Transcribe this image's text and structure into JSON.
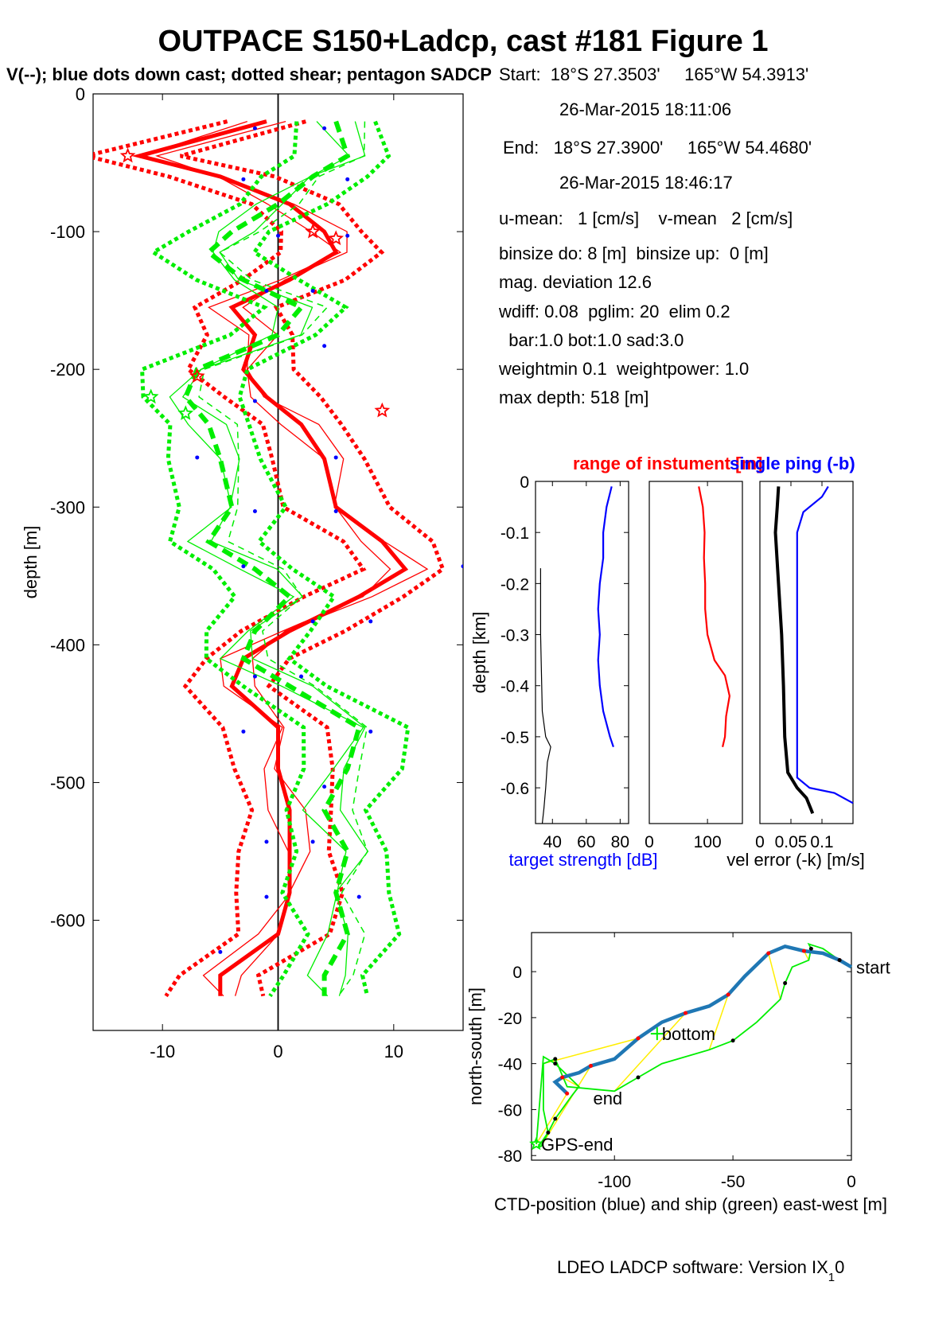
{
  "figure": {
    "title": "OUTPACE S150+Ladcp, cast #181  Figure 1",
    "subtitle": "V(--); blue dots down cast; dotted shear; pentagon SADCP",
    "footer_main": "LDEO LADCP software: Version IX",
    "footer_sub": "1",
    "footer_tail": "0"
  },
  "info": {
    "lines": [
      "Start:  18°S 27.3503'     165°W 54.3913'",
      "26-Mar-2015 18:11:06",
      "End:   18°S 27.3900'     165°W 54.4680'",
      "26-Mar-2015 18:46:17",
      "u-mean:   1 [cm/s]    v-mean   2 [cm/s]",
      "binsize do: 8 [m]  binsize up:  0 [m]",
      "mag. deviation 12.6",
      "wdiff: 0.08  pglim: 20  elim 0.2",
      "  bar:1.0 bot:1.0 sad:3.0",
      "weightmin 0.1  weightpower: 1.0",
      "max depth: 518 [m]"
    ]
  },
  "colors": {
    "u": "#ff0000",
    "v": "#00ee00",
    "blue": "#0000ff",
    "track_ctd": "#1f77b4",
    "yellow": "#ffee00",
    "black": "#000000"
  },
  "chart_data": [
    {
      "id": "velocity-profile",
      "type": "line",
      "ylabel": "depth [m]",
      "xlim": [
        -16,
        16
      ],
      "ylim": [
        -680,
        0
      ],
      "xticks": [
        -10,
        0,
        10
      ],
      "yticks": [
        0,
        -100,
        -200,
        -300,
        -400,
        -500,
        -600
      ],
      "depth": [
        -20,
        -45,
        -60,
        -80,
        -100,
        -115,
        -135,
        -155,
        -175,
        -200,
        -220,
        -240,
        -265,
        -300,
        -325,
        -345,
        -365,
        -390,
        -410,
        -430,
        -460,
        -490,
        -520,
        -550,
        -580,
        -610,
        -640,
        -655
      ],
      "series": [
        {
          "name": "u",
          "values": [
            -1,
            -12,
            -5,
            1,
            4,
            5,
            1,
            -4,
            -2,
            -3,
            -1,
            2,
            4,
            5,
            9,
            11,
            7,
            1,
            -3,
            -4,
            0,
            0,
            1,
            1,
            1,
            0,
            -5,
            -5
          ]
        },
        {
          "name": "v",
          "values": [
            5,
            6,
            3,
            0,
            -4,
            -6,
            -3,
            2,
            0,
            -7,
            -8,
            -6,
            -5,
            -4,
            -6,
            -2,
            1,
            -2,
            -3,
            1,
            7,
            6,
            4,
            6,
            5,
            6,
            4,
            4
          ]
        }
      ],
      "sadcp_markers": [
        {
          "series": "u",
          "depth": -45,
          "value": -13
        },
        {
          "series": "u",
          "depth": -100,
          "value": 3
        },
        {
          "series": "u",
          "depth": -105,
          "value": 5
        },
        {
          "series": "u",
          "depth": -205,
          "value": -7
        },
        {
          "series": "u",
          "depth": -230,
          "value": 9
        },
        {
          "series": "v",
          "depth": -220,
          "value": -11
        },
        {
          "series": "v",
          "depth": -232,
          "value": -8
        }
      ],
      "downcast_dots": [
        {
          "depth": -25,
          "value": -2
        },
        {
          "depth": -25,
          "value": 4
        },
        {
          "depth": -62,
          "value": -3
        },
        {
          "depth": -62,
          "value": 6
        },
        {
          "depth": -103,
          "value": 0
        },
        {
          "depth": -103,
          "value": 6
        },
        {
          "depth": -143,
          "value": -1
        },
        {
          "depth": -143,
          "value": 3
        },
        {
          "depth": -183,
          "value": 4
        },
        {
          "depth": -223,
          "value": -2
        },
        {
          "depth": -264,
          "value": -7
        },
        {
          "depth": -264,
          "value": 5
        },
        {
          "depth": -303,
          "value": -2
        },
        {
          "depth": -303,
          "value": 5
        },
        {
          "depth": -343,
          "value": -3
        },
        {
          "depth": -343,
          "value": 16
        },
        {
          "depth": -383,
          "value": 3
        },
        {
          "depth": -383,
          "value": 8
        },
        {
          "depth": -423,
          "value": -2
        },
        {
          "depth": -423,
          "value": 2
        },
        {
          "depth": -463,
          "value": -3
        },
        {
          "depth": -463,
          "value": 8
        },
        {
          "depth": -503,
          "value": 4
        },
        {
          "depth": -543,
          "value": -1
        },
        {
          "depth": -543,
          "value": 3
        },
        {
          "depth": -583,
          "value": -1
        },
        {
          "depth": -583,
          "value": 7
        },
        {
          "depth": -623,
          "value": -5
        }
      ]
    },
    {
      "id": "target-strength",
      "type": "line",
      "title": "range of instument [m]",
      "xlabel": "target strength [dB]",
      "ylabel": "depth [km]",
      "xlim": [
        30,
        85
      ],
      "ylim": [
        -0.67,
        0
      ],
      "xticks": [
        40,
        60,
        80
      ],
      "yticks": [
        0,
        -0.1,
        -0.2,
        -0.3,
        -0.4,
        -0.5,
        -0.6
      ],
      "series": [
        {
          "name": "target strength",
          "color": "blue",
          "depth": [
            -0.01,
            -0.05,
            -0.1,
            -0.15,
            -0.2,
            -0.25,
            -0.3,
            -0.35,
            -0.4,
            -0.45,
            -0.5,
            -0.52
          ],
          "values": [
            75,
            72,
            70,
            70,
            68,
            67,
            68,
            67,
            68,
            70,
            74,
            76
          ]
        },
        {
          "name": "range",
          "color": "black",
          "depth": [
            -0.17,
            -0.3,
            -0.45,
            -0.5,
            -0.52,
            -0.55,
            -0.6,
            -0.64,
            -0.67
          ],
          "values": [
            33,
            33,
            34,
            36,
            39,
            37,
            36,
            35,
            34
          ]
        }
      ]
    },
    {
      "id": "range-panel",
      "type": "line",
      "xlim": [
        0,
        160
      ],
      "ylim": [
        -0.67,
        0
      ],
      "xticks": [
        0,
        100
      ],
      "series": [
        {
          "name": "range",
          "color": "red",
          "depth": [
            -0.01,
            -0.05,
            -0.1,
            -0.15,
            -0.2,
            -0.25,
            -0.3,
            -0.35,
            -0.38,
            -0.42,
            -0.46,
            -0.5,
            -0.52
          ],
          "values": [
            85,
            92,
            95,
            94,
            96,
            96,
            100,
            112,
            130,
            138,
            132,
            130,
            126
          ]
        }
      ]
    },
    {
      "id": "vel-error",
      "type": "line",
      "title": "single ping (-b)",
      "xlabel": "vel error (-k) [m/s]",
      "xlim": [
        0,
        0.15
      ],
      "ylim": [
        -0.67,
        0
      ],
      "xticks": [
        0,
        0.05,
        0.1
      ],
      "xticklabels": [
        "0",
        "0.05",
        "0.1"
      ],
      "series": [
        {
          "name": "single ping",
          "color": "black",
          "depth": [
            -0.01,
            -0.05,
            -0.1,
            -0.2,
            -0.3,
            -0.4,
            -0.5,
            -0.57,
            -0.6,
            -0.62,
            -0.65
          ],
          "values": [
            0.03,
            0.028,
            0.025,
            0.03,
            0.035,
            0.038,
            0.04,
            0.045,
            0.06,
            0.075,
            0.085
          ]
        },
        {
          "name": "vel error",
          "color": "blue",
          "depth": [
            -0.01,
            -0.03,
            -0.06,
            -0.1,
            -0.2,
            -0.3,
            -0.4,
            -0.5,
            -0.58,
            -0.6,
            -0.61,
            -0.63
          ],
          "values": [
            0.11,
            0.1,
            0.07,
            0.06,
            0.06,
            0.06,
            0.06,
            0.06,
            0.06,
            0.08,
            0.12,
            0.15
          ]
        }
      ]
    },
    {
      "id": "track",
      "type": "line",
      "xlabel": "CTD-position (blue) and ship (green) east-west [m]",
      "ylabel": "north-south [m]",
      "xlim": [
        -135,
        0
      ],
      "ylim": [
        -82,
        17
      ],
      "xticks": [
        -100,
        -50,
        0
      ],
      "yticks": [
        0,
        -20,
        -40,
        -60,
        -80
      ],
      "series": [
        {
          "name": "CTD-position",
          "color": "track_ctd",
          "x": [
            0,
            -5,
            -12,
            -20,
            -28,
            -35,
            -45,
            -52,
            -60,
            -70,
            -80,
            -90,
            -100,
            -110,
            -115,
            -122,
            -125,
            -120
          ],
          "y": [
            2,
            5,
            8,
            9,
            11,
            8,
            -2,
            -10,
            -15,
            -18,
            -22,
            -29,
            -38,
            -41,
            -44,
            -46,
            -48,
            -53
          ]
        },
        {
          "name": "ship",
          "color": "v",
          "x": [
            0,
            -5,
            -12,
            -18,
            -17,
            -18,
            -25,
            -28,
            -30,
            -40,
            -50,
            -60,
            -80,
            -90,
            -100,
            -120,
            -125,
            -130,
            -130,
            -128,
            -132,
            -131,
            -125,
            -118,
            -115,
            -125,
            -130,
            -133
          ],
          "y": [
            2,
            5,
            10,
            12,
            10,
            5,
            2,
            -5,
            -12,
            -22,
            -30,
            -34,
            -40,
            -46,
            -52,
            -50,
            -38,
            -40,
            -60,
            -70,
            -76,
            -76,
            -64,
            -54,
            -50,
            -40,
            -37,
            -75
          ]
        }
      ],
      "labels": [
        {
          "text": "start",
          "x": 0,
          "y": 2
        },
        {
          "text": "bottom",
          "x": -82,
          "y": -27
        },
        {
          "text": "end",
          "x": -111,
          "y": -55
        },
        {
          "text": "GPS-end",
          "x": -133,
          "y": -75
        }
      ]
    }
  ]
}
